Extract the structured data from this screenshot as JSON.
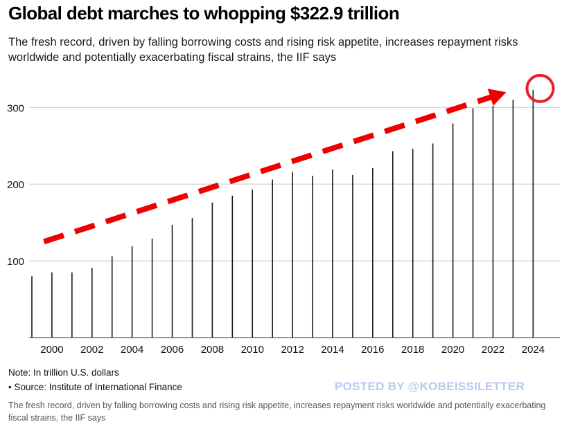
{
  "header": {
    "title": "Global debt marches to whopping $322.9 trillion",
    "subtitle": "The fresh record, driven by falling borrowing costs and rising risk appetite, increases repayment risks worldwide and potentially exacerbating fiscal strains, the IIF says"
  },
  "footer": {
    "note": "Note: In trillion U.S. dollars",
    "source": "• Source: Institute of International Finance",
    "watermark": "POSTED BY @KOBEISSILETTER",
    "caption": "The fresh record, driven by falling borrowing costs and rising risk appetite, increases repayment risks worldwide and potentially exacerbating fiscal strains, the IIF says"
  },
  "colors": {
    "bars": "#1a1a1a",
    "grid": "#c8c8c8",
    "arrow": "#ee0000",
    "highlight_circle": "#e8202a",
    "watermark": "#b6c9ef"
  },
  "annotations": {
    "trend_arrow": "dashed-red-arrow",
    "highlight": "red-circle-around-latest-value"
  },
  "chart_data": {
    "type": "bar",
    "title": "Global debt marches to whopping $322.9 trillion",
    "xlabel": "",
    "ylabel": "",
    "unit": "trillion U.S. dollars",
    "x_ticks": [
      "2000",
      "2002",
      "2004",
      "2006",
      "2008",
      "2010",
      "2012",
      "2014",
      "2016",
      "2018",
      "2020",
      "2022",
      "2024"
    ],
    "y_ticks": [
      100,
      200,
      300
    ],
    "ylim": [
      0,
      330
    ],
    "xlim": [
      1999,
      2024.3
    ],
    "grid": true,
    "series": [
      {
        "x": [
          1999.0,
          2000.0,
          2001.0,
          2002.0,
          2003.0,
          2004.0,
          2005.0,
          2006.0,
          2007.0,
          2008.0,
          2009.0,
          2010.0,
          2011.0,
          2012.0,
          2013.0,
          2014.0,
          2015.0,
          2016.0,
          2017.0,
          2018.0,
          2019.0,
          2020.0,
          2021.0,
          2022.0,
          2023.0,
          2024.0
        ],
        "values": [
          80,
          85,
          85,
          91,
          106,
          119,
          129,
          147,
          156,
          176,
          185,
          193,
          206,
          216,
          211,
          219,
          212,
          221,
          243,
          246,
          253,
          279,
          299,
          302,
          310,
          322.9
        ]
      }
    ]
  }
}
